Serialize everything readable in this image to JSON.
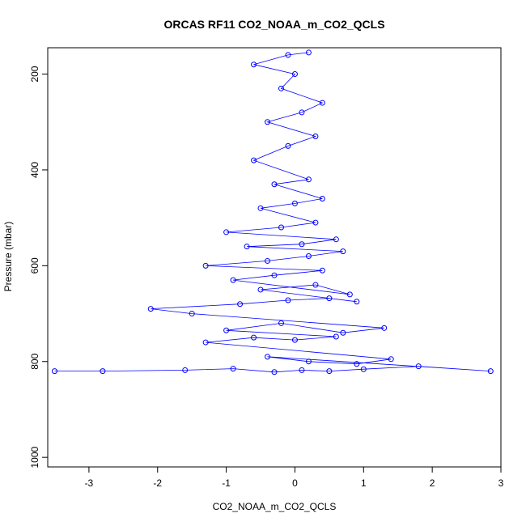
{
  "chart_data": {
    "type": "scatter",
    "title": "ORCAS RF11 CO2_NOAA_m_CO2_QCLS",
    "xlabel": "CO2_NOAA_m_CO2_QCLS",
    "ylabel": "Pressure (mbar)",
    "xlim": [
      -3.6,
      3.0
    ],
    "ylim": [
      1020,
      145
    ],
    "y_reversed": true,
    "x_ticks": [
      -3,
      -2,
      -1,
      0,
      1,
      2,
      3
    ],
    "y_ticks": [
      200,
      400,
      600,
      800,
      1000
    ],
    "grid": false,
    "legend": "none",
    "marker": "open-circle",
    "connected_by_lines": true,
    "series": [
      {
        "color": "#0000ff",
        "x": [
          -3.5,
          -2.8,
          -1.6,
          -0.9,
          -0.3,
          0.1,
          0.5,
          1.0,
          1.8,
          2.85,
          -0.4,
          0.2,
          0.9,
          1.4,
          -1.3,
          -0.6,
          0.0,
          0.6,
          -1.0,
          -0.2,
          0.7,
          1.3,
          -1.5,
          -2.1,
          -0.8,
          -0.1,
          0.5,
          0.9,
          -0.5,
          0.3,
          0.8,
          -0.9,
          -0.3,
          0.4,
          -1.3,
          -0.4,
          0.2,
          0.7,
          -0.7,
          0.1,
          0.6,
          -1.0,
          -0.2,
          0.3,
          -0.5,
          0.0,
          0.4,
          -0.3,
          0.2,
          -0.6,
          -0.1,
          0.3,
          -0.4,
          0.1,
          0.4,
          -0.2,
          0.0,
          -0.6,
          -0.1,
          0.2
        ],
        "y": [
          820,
          820,
          818,
          815,
          822,
          818,
          820,
          816,
          810,
          820,
          790,
          800,
          805,
          795,
          760,
          750,
          755,
          748,
          735,
          720,
          740,
          730,
          700,
          690,
          680,
          672,
          668,
          675,
          650,
          640,
          660,
          630,
          620,
          610,
          600,
          590,
          580,
          570,
          560,
          555,
          545,
          530,
          520,
          510,
          480,
          470,
          460,
          430,
          420,
          380,
          350,
          330,
          300,
          280,
          260,
          230,
          200,
          180,
          160,
          155
        ]
      }
    ]
  }
}
